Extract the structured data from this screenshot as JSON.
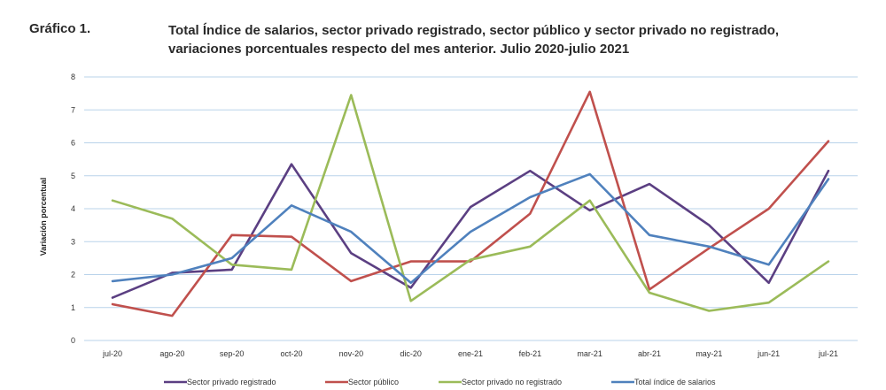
{
  "figure": {
    "label": "Gráfico 1.",
    "title_line1": "Total Índice de salarios, sector privado registrado, sector público y sector privado no registrado,",
    "title_line2": "variaciones porcentuales respecto del mes anterior. Julio 2020-julio 2021"
  },
  "chart_data": {
    "type": "line",
    "title": "Total Índice de salarios, sector privado registrado, sector público y sector privado no registrado, variaciones porcentuales respecto del mes anterior. Julio 2020-julio 2021",
    "xlabel": "",
    "ylabel": "Variación porcentual",
    "ylim": [
      0,
      8
    ],
    "yticks": [
      "0",
      "1",
      "2",
      "3",
      "4",
      "5",
      "6",
      "7",
      "8"
    ],
    "grid": true,
    "legend_position": "bottom",
    "categories": [
      "jul-20",
      "ago-20",
      "sep-20",
      "oct-20",
      "nov-20",
      "dic-20",
      "ene-21",
      "feb-21",
      "mar-21",
      "abr-21",
      "may-21",
      "jun-21",
      "jul-21"
    ],
    "series": [
      {
        "name": "Sector privado registrado",
        "color": "#5b3f82",
        "values": [
          1.3,
          2.05,
          2.15,
          5.35,
          2.65,
          1.6,
          4.05,
          5.15,
          3.95,
          4.75,
          3.5,
          1.75,
          5.15
        ]
      },
      {
        "name": "Sector público",
        "color": "#c0504d",
        "values": [
          1.1,
          0.75,
          3.2,
          3.15,
          1.8,
          2.4,
          2.4,
          3.85,
          7.55,
          1.55,
          2.8,
          4.0,
          6.05
        ]
      },
      {
        "name": "Sector privado no registrado",
        "color": "#9bbb59",
        "values": [
          4.25,
          3.7,
          2.3,
          2.15,
          7.45,
          1.2,
          2.45,
          2.85,
          4.25,
          1.45,
          0.9,
          1.15,
          2.4
        ]
      },
      {
        "name": "Total índice de salarios",
        "color": "#4f81bd",
        "values": [
          1.8,
          2.0,
          2.5,
          4.1,
          3.3,
          1.75,
          3.3,
          4.35,
          5.05,
          3.2,
          2.85,
          2.3,
          4.9
        ]
      }
    ]
  }
}
